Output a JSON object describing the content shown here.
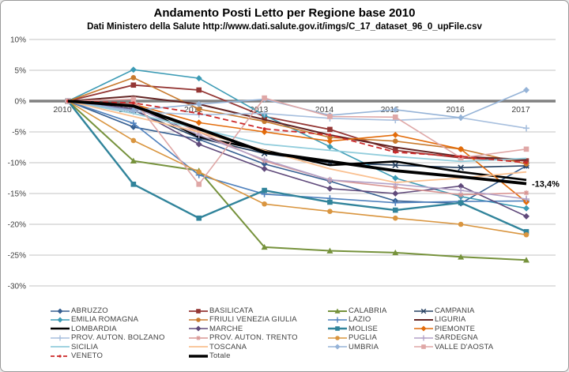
{
  "chart": {
    "title": "Andamento Posti Letto per Regione base 2010",
    "subtitle": "Dati Ministero della Salute http://www.dati.salute.gov.it/imgs/C_17_dataset_96_0_upFile.csv",
    "annotation": "-13,4%"
  },
  "colors": {
    "background": "#ffffff",
    "border": "#9a9a9a",
    "grid": "#c3c3c3",
    "zero_line": "#808080",
    "axis_text": "#3f3f3f",
    "annotation_text": "#000000"
  },
  "chart_data": {
    "type": "line",
    "x": [
      "2010",
      "2011",
      "2012",
      "2013",
      "2014",
      "2015",
      "2016",
      "2017"
    ],
    "y_ticks": [
      "10%",
      "5%",
      "0%",
      "-5%",
      "-10%",
      "-15%",
      "-20%",
      "-25%",
      "-30%"
    ],
    "ylim": [
      -30,
      10
    ],
    "y_unit": "percent",
    "grid": true,
    "legend_position": "bottom",
    "annotation": {
      "text": "-13,4%",
      "series": "Totale",
      "x": "2017",
      "y": -13.4
    },
    "series": [
      {
        "name": "ABRUZZO",
        "color": "#365f91",
        "marker": "diamond",
        "width": 1.6,
        "dash": null,
        "values": [
          0,
          -4.2,
          -6.2,
          -10.2,
          -13.0,
          -16.2,
          -16.6,
          -10.5
        ]
      },
      {
        "name": "BASILICATA",
        "color": "#943634",
        "marker": "square",
        "width": 1.8,
        "dash": null,
        "values": [
          0,
          2.6,
          1.8,
          -2.5,
          -4.6,
          -8.0,
          -9.2,
          -9.7
        ]
      },
      {
        "name": "CALABRIA",
        "color": "#76923c",
        "marker": "triangle",
        "width": 2.0,
        "dash": null,
        "values": [
          0,
          -9.7,
          -11.3,
          -23.7,
          -24.3,
          -24.6,
          -25.3,
          -25.8
        ]
      },
      {
        "name": "CAMPANIA",
        "color": "#254061",
        "marker": "x",
        "width": 1.6,
        "dash": null,
        "values": [
          0,
          -1.5,
          -6.0,
          -8.5,
          -10.0,
          -10.4,
          -10.8,
          -10.5
        ]
      },
      {
        "name": "EMILIA ROMAGNA",
        "color": "#3c9bb5",
        "marker": "diamond",
        "width": 1.6,
        "dash": null,
        "values": [
          0,
          5.1,
          3.7,
          -2.3,
          -7.4,
          -12.5,
          -15.5,
          -17.4
        ]
      },
      {
        "name": "FRIULI VENEZIA  GIULIA",
        "color": "#c87a2e",
        "marker": "circle",
        "width": 1.6,
        "dash": null,
        "values": [
          0,
          3.8,
          -1.3,
          -3.3,
          -5.9,
          -6.5,
          -7.8,
          -10.2
        ]
      },
      {
        "name": "LAZIO",
        "color": "#4f81bd",
        "marker": "plus",
        "width": 1.6,
        "dash": null,
        "values": [
          0,
          -3.6,
          -12.0,
          -15.1,
          -15.8,
          -16.5,
          -16.3,
          -16.2
        ]
      },
      {
        "name": "LIGURIA",
        "color": "#632423",
        "marker": "none",
        "width": 2.0,
        "dash": null,
        "values": [
          0,
          0.8,
          -0.5,
          -3.0,
          -5.5,
          -7.5,
          -9.0,
          -9.5
        ]
      },
      {
        "name": "LOMBARDIA",
        "color": "#000000",
        "marker": "none",
        "width": 2.6,
        "dash": null,
        "values": [
          0,
          -0.5,
          -5.8,
          -8.0,
          -10.4,
          -9.8,
          -11.5,
          -12.8
        ]
      },
      {
        "name": "MARCHE",
        "color": "#604a7b",
        "marker": "diamond",
        "width": 1.6,
        "dash": null,
        "values": [
          0,
          -1.3,
          -7.0,
          -11.0,
          -14.2,
          -15.0,
          -13.8,
          -18.7
        ]
      },
      {
        "name": "MOLISE",
        "color": "#31849b",
        "marker": "square",
        "width": 2.4,
        "dash": null,
        "values": [
          0,
          -13.5,
          -19.0,
          -14.5,
          -16.4,
          -17.7,
          -16.5,
          -21.2
        ]
      },
      {
        "name": "PIEMONTE",
        "color": "#e36c0a",
        "marker": "diamond",
        "width": 1.6,
        "dash": null,
        "values": [
          0,
          -0.5,
          -3.5,
          -5.0,
          -6.5,
          -5.5,
          -7.8,
          -16.4
        ]
      },
      {
        "name": "PROV. AUTON. BOLZANO",
        "color": "#a7bfde",
        "marker": "plus",
        "width": 1.6,
        "dash": null,
        "values": [
          0,
          -1.7,
          -2.2,
          -2.0,
          -2.8,
          -3.1,
          -2.7,
          -4.4
        ]
      },
      {
        "name": "PROV. AUTON. TRENTO",
        "color": "#d99694",
        "marker": "star",
        "width": 1.6,
        "dash": null,
        "values": [
          0,
          -0.5,
          -5.0,
          -9.7,
          -12.8,
          -14.0,
          -15.2,
          -14.9
        ]
      },
      {
        "name": "PUGLIA",
        "color": "#d9953f",
        "marker": "circle",
        "width": 1.6,
        "dash": null,
        "values": [
          0,
          -6.4,
          -11.5,
          -16.7,
          -17.9,
          -19.0,
          -20.0,
          -21.7
        ]
      },
      {
        "name": "SARDEGNA",
        "color": "#b3a2c7",
        "marker": "plus",
        "width": 1.6,
        "dash": null,
        "values": [
          0,
          -1.0,
          -5.5,
          -9.5,
          -12.8,
          -13.5,
          -14.5,
          -15.9
        ]
      },
      {
        "name": "SICILIA",
        "color": "#92cddc",
        "marker": "none",
        "width": 1.8,
        "dash": null,
        "values": [
          0,
          -2.0,
          -4.5,
          -7.0,
          -8.0,
          -9.0,
          -9.8,
          -9.3
        ]
      },
      {
        "name": "TOSCANA",
        "color": "#fac090",
        "marker": "none",
        "width": 1.8,
        "dash": null,
        "values": [
          0,
          -2.5,
          -5.0,
          -8.0,
          -11.0,
          -13.2,
          -12.5,
          -11.5
        ]
      },
      {
        "name": "UMBRIA",
        "color": "#95b3d7",
        "marker": "diamond",
        "width": 1.6,
        "dash": null,
        "values": [
          0,
          -1.5,
          -0.5,
          0.3,
          -2.3,
          -1.4,
          -2.7,
          1.8
        ]
      },
      {
        "name": "VALLE D'AOSTA",
        "color": "#dfa7a6",
        "marker": "square",
        "width": 1.6,
        "dash": null,
        "values": [
          0,
          0.3,
          -13.5,
          0.5,
          -2.5,
          -2.6,
          -9.2,
          -7.8
        ]
      },
      {
        "name": "VENETO",
        "color": "#cc2929",
        "marker": "dot",
        "width": 1.8,
        "dash": "7,4",
        "values": [
          0,
          -0.3,
          -2.0,
          -4.5,
          -5.5,
          -8.3,
          -9.0,
          -10.0
        ]
      },
      {
        "name": "Totale",
        "color": "#000000",
        "marker": "none",
        "width": 3.8,
        "dash": null,
        "values": [
          0,
          -0.8,
          -4.5,
          -8.3,
          -9.8,
          -11.3,
          -12.3,
          -13.4
        ]
      }
    ]
  }
}
